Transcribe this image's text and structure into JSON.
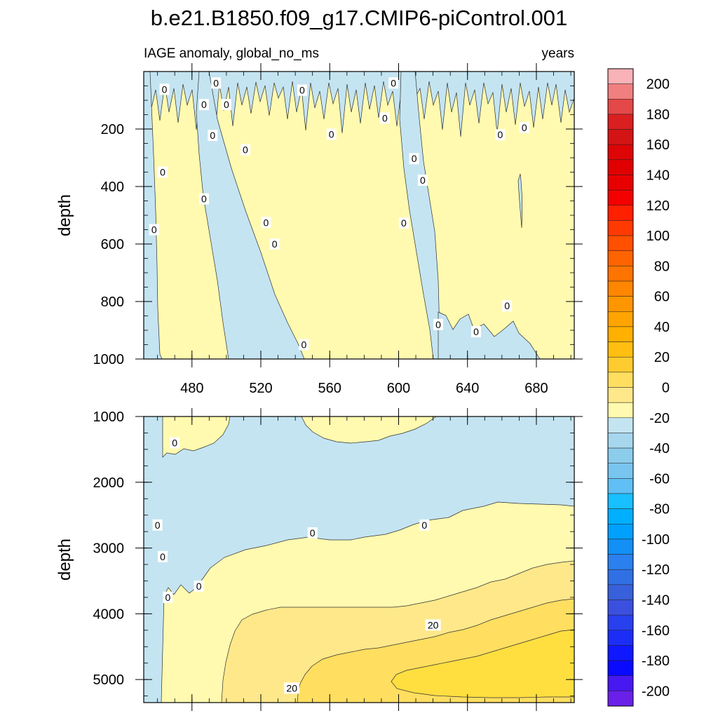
{
  "chart_data": {
    "type": "heatmap",
    "title": "b.e21.B1850.f09_g17.CMIP6-piControl.001",
    "left_label": "IAGE anomaly, global_no_ms",
    "right_label": "years",
    "x": {
      "range": [
        452,
        702
      ],
      "ticks": [
        "480",
        "520",
        "560",
        "600",
        "640",
        "680"
      ],
      "tick_values": [
        480,
        520,
        560,
        600,
        640,
        680
      ]
    },
    "panels": [
      {
        "id": "upper",
        "ylabel": "depth",
        "ylim": [
          0,
          1000
        ],
        "yticks": [
          "200",
          "400",
          "600",
          "800",
          "1000"
        ],
        "ytick_values": [
          200,
          400,
          600,
          800,
          1000
        ],
        "contour_labels": [
          {
            "text": "0",
            "x": 464,
            "y": 62
          },
          {
            "text": "0",
            "x": 494,
            "y": 40
          },
          {
            "text": "0",
            "x": 487,
            "y": 115
          },
          {
            "text": "0",
            "x": 500,
            "y": 115
          },
          {
            "text": "0",
            "x": 492,
            "y": 222
          },
          {
            "text": "0",
            "x": 511,
            "y": 272
          },
          {
            "text": "0",
            "x": 463,
            "y": 350
          },
          {
            "text": "0",
            "x": 487,
            "y": 443
          },
          {
            "text": "0",
            "x": 458,
            "y": 550
          },
          {
            "text": "0",
            "x": 523,
            "y": 525
          },
          {
            "text": "0",
            "x": 528,
            "y": 600
          },
          {
            "text": "0",
            "x": 544,
            "y": 65
          },
          {
            "text": "0",
            "x": 561,
            "y": 218
          },
          {
            "text": "0",
            "x": 545,
            "y": 950
          },
          {
            "text": "0",
            "x": 597,
            "y": 40
          },
          {
            "text": "0",
            "x": 592,
            "y": 162
          },
          {
            "text": "0",
            "x": 609,
            "y": 303
          },
          {
            "text": "0",
            "x": 614,
            "y": 378
          },
          {
            "text": "0",
            "x": 603,
            "y": 527
          },
          {
            "text": "0",
            "x": 623,
            "y": 880
          },
          {
            "text": "0",
            "x": 645,
            "y": 905
          },
          {
            "text": "0",
            "x": 663,
            "y": 815
          },
          {
            "text": "0",
            "x": 659,
            "y": 220
          },
          {
            "text": "0",
            "x": 673,
            "y": 195
          }
        ]
      },
      {
        "id": "lower",
        "ylabel": "depth",
        "ylim": [
          1000,
          5350
        ],
        "yticks": [
          "1000",
          "2000",
          "3000",
          "4000",
          "5000"
        ],
        "ytick_values": [
          1000,
          2000,
          3000,
          4000,
          5000
        ],
        "contour_labels": [
          {
            "text": "0",
            "x": 470,
            "y": 1400
          },
          {
            "text": "0",
            "x": 460,
            "y": 2650
          },
          {
            "text": "0",
            "x": 463,
            "y": 3130
          },
          {
            "text": "0",
            "x": 466,
            "y": 3750
          },
          {
            "text": "0",
            "x": 484,
            "y": 3580
          },
          {
            "text": "0",
            "x": 550,
            "y": 2770
          },
          {
            "text": "0",
            "x": 615,
            "y": 2650
          },
          {
            "text": "20",
            "x": 620,
            "y": 4170
          },
          {
            "text": "20",
            "x": 538,
            "y": 5130
          }
        ]
      }
    ],
    "colorbar": {
      "labels": [
        "200",
        "180",
        "160",
        "140",
        "120",
        "100",
        "80",
        "60",
        "40",
        "20",
        "0",
        "-20",
        "-40",
        "-60",
        "-80",
        "-100",
        "-120",
        "-140",
        "-160",
        "-180",
        "-200"
      ],
      "label_values": [
        200,
        180,
        160,
        140,
        120,
        100,
        80,
        60,
        40,
        20,
        0,
        -20,
        -40,
        -60,
        -80,
        -100,
        -120,
        -140,
        -160,
        -180,
        -200
      ],
      "levels": [
        210,
        200,
        190,
        180,
        170,
        160,
        150,
        140,
        130,
        120,
        110,
        100,
        90,
        80,
        70,
        60,
        50,
        40,
        30,
        20,
        10,
        0,
        -10,
        -20,
        -30,
        -40,
        -50,
        -60,
        -70,
        -80,
        -90,
        -100,
        -110,
        -120,
        -130,
        -140,
        -150,
        -160,
        -170,
        -180,
        -190,
        -200,
        -210
      ],
      "colors": [
        "#f9b2b7",
        "#f17f80",
        "#e44848",
        "#d91f1f",
        "#d41414",
        "#dd0505",
        "#e10000",
        "#e80000",
        "#f40000",
        "#ff2000",
        "#ff3a00",
        "#ff5000",
        "#ff6400",
        "#ff7400",
        "#ff8600",
        "#ff9600",
        "#ffa400",
        "#ffb000",
        "#ffbe10",
        "#ffcc30",
        "#ffde60",
        "#ffe88a",
        "#fffab0",
        "#c4e4f2",
        "#a6d7ee",
        "#8ccdec",
        "#78c5ef",
        "#60bff4",
        "#18c0ff",
        "#00b0ff",
        "#00a0ff",
        "#1290f6",
        "#2a80ee",
        "#3070e4",
        "#3860da",
        "#3c50e0",
        "#2840ee",
        "#1c2ef6",
        "#1018ff",
        "#0a0aff",
        "#4818f0",
        "#6a20e8",
        "#8c2ae4"
      ]
    }
  }
}
